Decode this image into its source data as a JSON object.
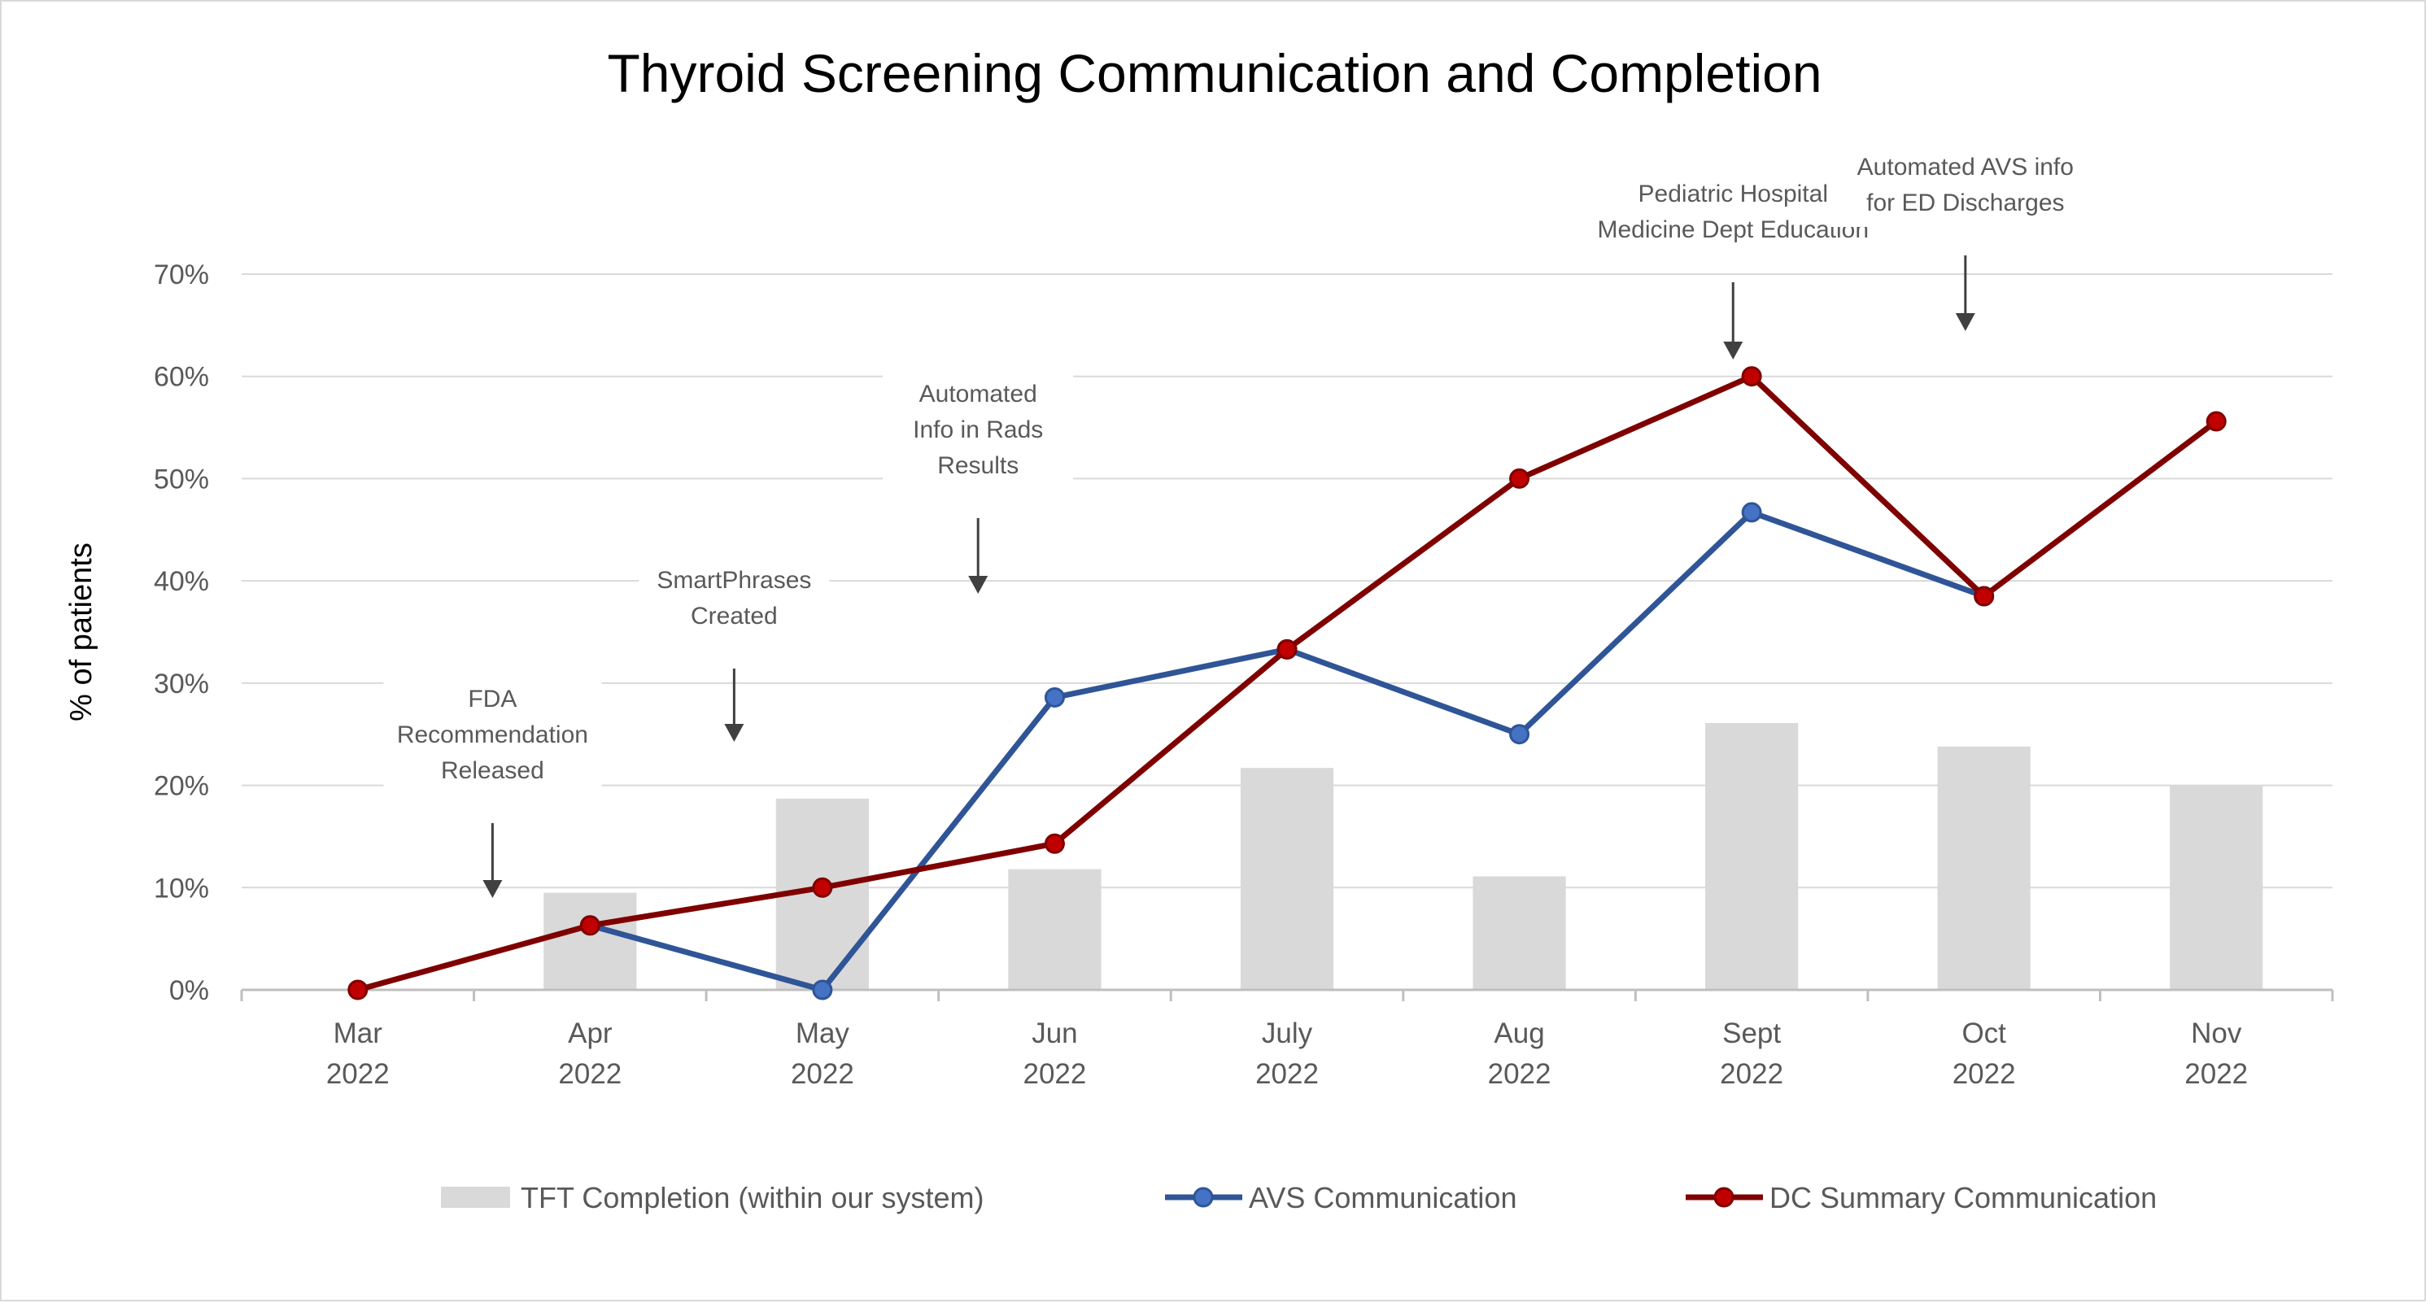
{
  "chart_data": {
    "type": "bar",
    "title": "Thyroid Screening Communication and Completion",
    "ylabel": "% of patients",
    "ylim": [
      0,
      70
    ],
    "ytick_values": [
      0,
      10,
      20,
      30,
      40,
      50,
      60,
      70
    ],
    "ytick_labels": [
      "0%",
      "10%",
      "20%",
      "30%",
      "40%",
      "50%",
      "60%",
      "70%"
    ],
    "categories": [
      {
        "month": "Mar",
        "year": "2022"
      },
      {
        "month": "Apr",
        "year": "2022"
      },
      {
        "month": "May",
        "year": "2022"
      },
      {
        "month": "Jun",
        "year": "2022"
      },
      {
        "month": "July",
        "year": "2022"
      },
      {
        "month": "Aug",
        "year": "2022"
      },
      {
        "month": "Sept",
        "year": "2022"
      },
      {
        "month": "Oct",
        "year": "2022"
      },
      {
        "month": "Nov",
        "year": "2022"
      }
    ],
    "series": [
      {
        "name": "TFT Completion (within our system)",
        "kind": "bar",
        "color": "#d9d9d9",
        "values": [
          null,
          9.5,
          18.7,
          11.8,
          21.7,
          11.1,
          26.1,
          23.8,
          20.0
        ]
      },
      {
        "name": "AVS Communication",
        "kind": "line",
        "color": "#2f5597",
        "marker_color": "#4472c4",
        "values": [
          null,
          6.3,
          0.0,
          28.6,
          33.3,
          25.0,
          46.7,
          38.5,
          null
        ]
      },
      {
        "name": "DC Summary Communication",
        "kind": "line",
        "color": "#7f0000",
        "marker_color": "#c00000",
        "values": [
          0.0,
          6.3,
          10.0,
          14.3,
          33.3,
          50.0,
          60.0,
          38.5,
          55.6
        ]
      }
    ],
    "annotations": [
      {
        "lines": [
          "FDA",
          "Recommendation",
          "Released"
        ],
        "category_index": 0.58
      },
      {
        "lines": [
          "SmartPhrases",
          "Created"
        ],
        "category_index": 1.62
      },
      {
        "lines": [
          "Automated",
          "Info in Rads",
          "Results"
        ],
        "category_index": 2.67
      },
      {
        "lines": [
          "Pediatric Hospital",
          "Medicine Dept Education"
        ],
        "category_index": 5.92
      },
      {
        "lines": [
          "Automated AVS info",
          "for ED Discharges"
        ],
        "category_index": 6.92
      }
    ],
    "grid": true,
    "legend_position": "bottom"
  }
}
